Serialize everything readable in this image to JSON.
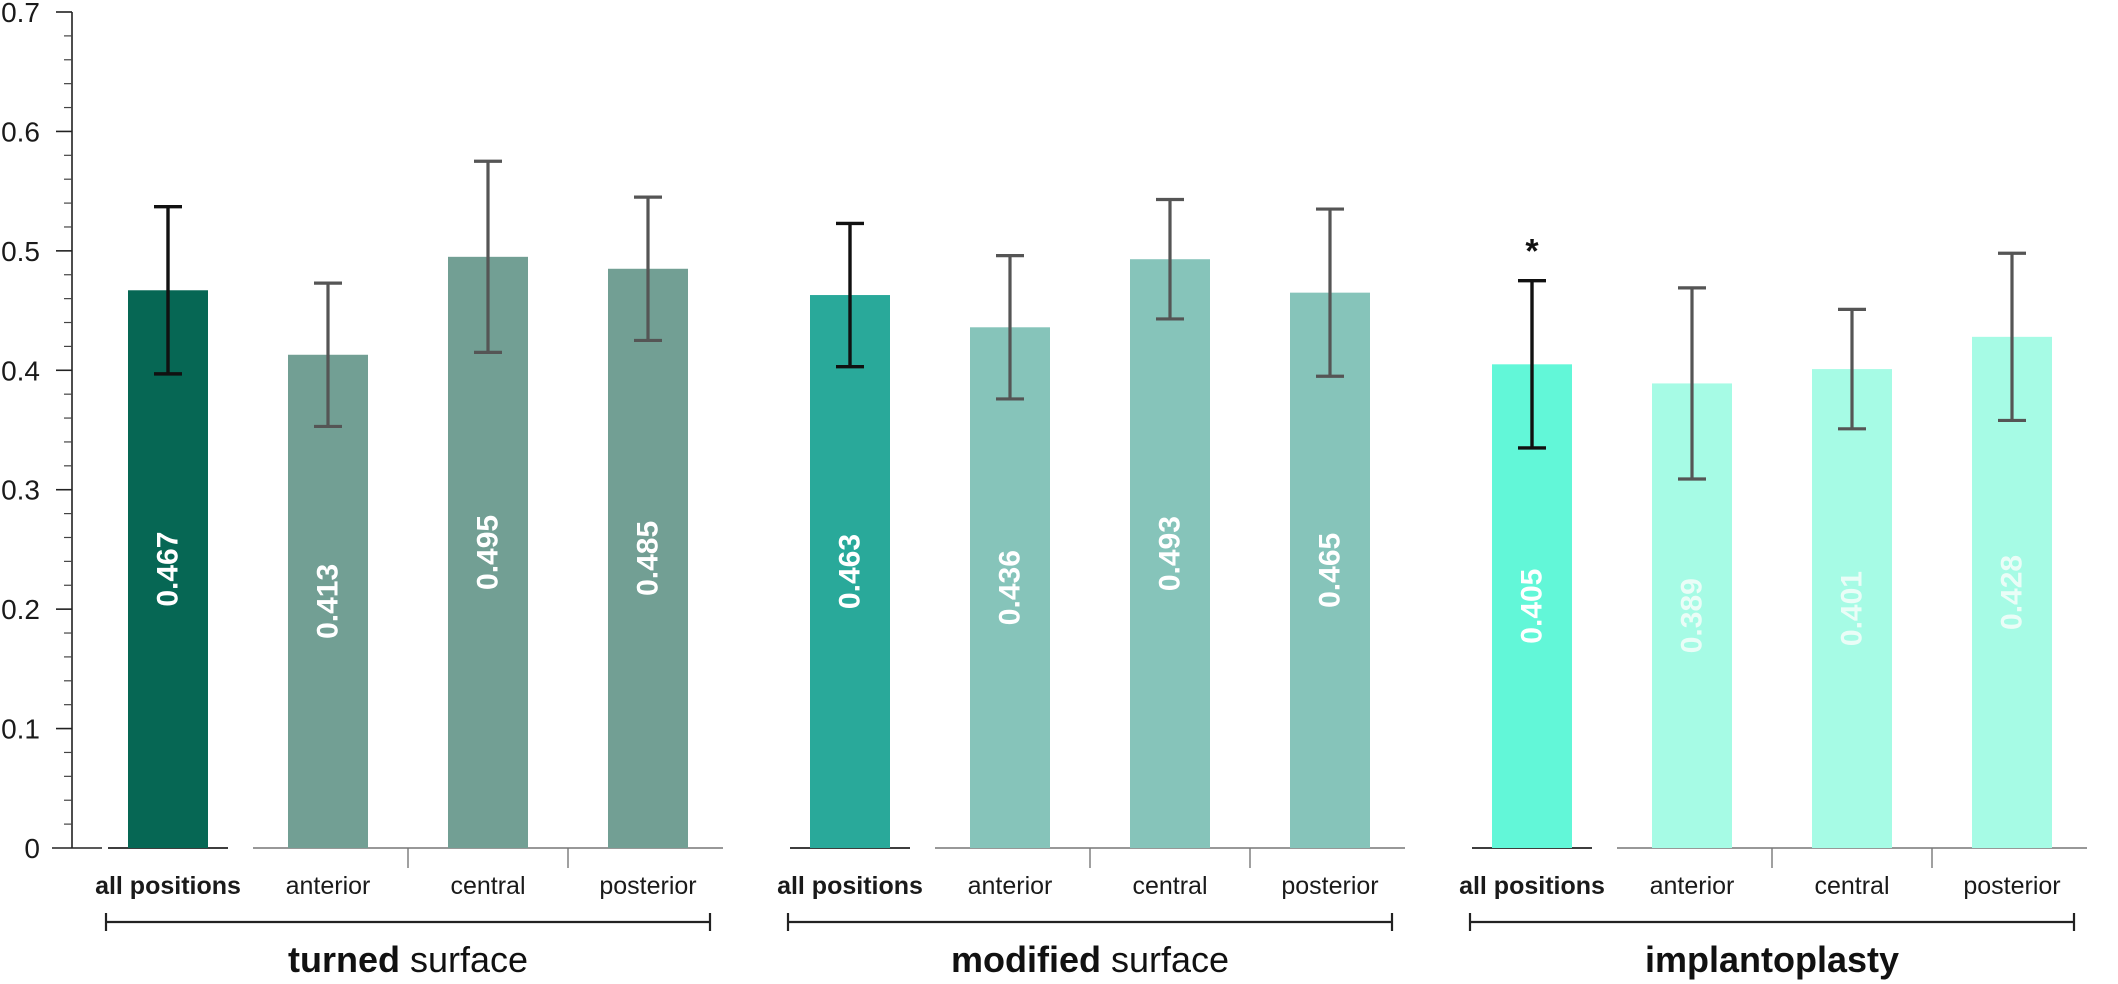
{
  "chart_data": {
    "type": "bar",
    "ylim": [
      0,
      0.7
    ],
    "y_major_ticks": [
      "0",
      "0.1",
      "0.2",
      "0.3",
      "0.4",
      "0.5",
      "0.6",
      "0.7"
    ],
    "y_major_values": [
      0,
      0.1,
      0.2,
      0.3,
      0.4,
      0.5,
      0.6,
      0.7
    ],
    "y_minor_step": 0.02,
    "grid": false,
    "groups": [
      {
        "title_bold": "turned",
        "title_rest": " surface",
        "bars": [
          {
            "label": "all positions",
            "value": 0.467,
            "value_label": "0.467",
            "err_low": 0.397,
            "err_high": 0.537,
            "color": "#066754",
            "text_color": "#ffffff",
            "err_color": "#111111",
            "bold": true,
            "significance": ""
          },
          {
            "label": "anterior",
            "value": 0.413,
            "value_label": "0.413",
            "err_low": 0.353,
            "err_high": 0.473,
            "color": "#729f94",
            "text_color": "#ffffff",
            "err_color": "#555555",
            "bold": false,
            "significance": ""
          },
          {
            "label": "central",
            "value": 0.495,
            "value_label": "0.495",
            "err_low": 0.415,
            "err_high": 0.575,
            "color": "#729f94",
            "text_color": "#ffffff",
            "err_color": "#555555",
            "bold": false,
            "significance": ""
          },
          {
            "label": "posterior",
            "value": 0.485,
            "value_label": "0.485",
            "err_low": 0.425,
            "err_high": 0.545,
            "color": "#729f94",
            "text_color": "#ffffff",
            "err_color": "#555555",
            "bold": false,
            "significance": ""
          }
        ]
      },
      {
        "title_bold": "modified",
        "title_rest": " surface",
        "bars": [
          {
            "label": "all positions",
            "value": 0.463,
            "value_label": "0.463",
            "err_low": 0.403,
            "err_high": 0.523,
            "color": "#29a99a",
            "text_color": "#ffffff",
            "err_color": "#111111",
            "bold": true,
            "significance": ""
          },
          {
            "label": "anterior",
            "value": 0.436,
            "value_label": "0.436",
            "err_low": 0.376,
            "err_high": 0.496,
            "color": "#86c4ba",
            "text_color": "#ffffff",
            "err_color": "#555555",
            "bold": false,
            "significance": ""
          },
          {
            "label": "central",
            "value": 0.493,
            "value_label": "0.493",
            "err_low": 0.443,
            "err_high": 0.543,
            "color": "#86c4ba",
            "text_color": "#ffffff",
            "err_color": "#555555",
            "bold": false,
            "significance": ""
          },
          {
            "label": "posterior",
            "value": 0.465,
            "value_label": "0.465",
            "err_low": 0.395,
            "err_high": 0.535,
            "color": "#86c4ba",
            "text_color": "#ffffff",
            "err_color": "#555555",
            "bold": false,
            "significance": ""
          }
        ]
      },
      {
        "title_bold": "implantoplasty",
        "title_rest": "",
        "bars": [
          {
            "label": "all positions",
            "value": 0.405,
            "value_label": "0.405",
            "err_low": 0.335,
            "err_high": 0.475,
            "color": "#62f7d8",
            "text_color": "#ffffff",
            "err_color": "#111111",
            "bold": true,
            "significance": "*"
          },
          {
            "label": "anterior",
            "value": 0.389,
            "value_label": "0.389",
            "err_low": 0.309,
            "err_high": 0.469,
            "color": "#a6fbe5",
            "text_color": "#eafdf7",
            "err_color": "#555555",
            "bold": false,
            "significance": ""
          },
          {
            "label": "central",
            "value": 0.401,
            "value_label": "0.401",
            "err_low": 0.351,
            "err_high": 0.451,
            "color": "#a6fbe5",
            "text_color": "#eafdf7",
            "err_color": "#555555",
            "bold": false,
            "significance": ""
          },
          {
            "label": "posterior",
            "value": 0.428,
            "value_label": "0.428",
            "err_low": 0.358,
            "err_high": 0.498,
            "color": "#a6fbe5",
            "text_color": "#eafdf7",
            "err_color": "#555555",
            "bold": false,
            "significance": ""
          }
        ]
      }
    ]
  }
}
